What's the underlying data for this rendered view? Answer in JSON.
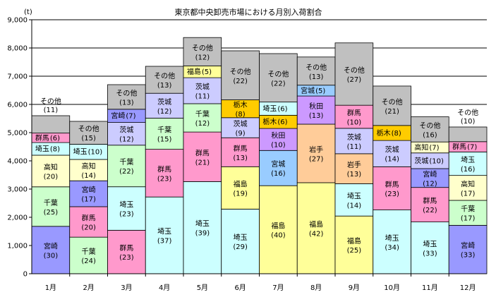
{
  "chart_data": {
    "type": "bar",
    "stacked": true,
    "title": "東京都中央卸売市場における月別入荷割合",
    "ylabel": "(t)",
    "xlabel": "",
    "ylim": [
      0,
      9000
    ],
    "yticks": [
      0,
      1000,
      2000,
      3000,
      4000,
      5000,
      6000,
      7000,
      8000,
      9000
    ],
    "ytick_labels": [
      "0",
      "1,000",
      "2,000",
      "3,000",
      "4,000",
      "5,000",
      "6,000",
      "7,000",
      "8,000",
      "9,000"
    ],
    "grid": "horizontal",
    "legend": "none",
    "categories": [
      "1月",
      "2月",
      "3月",
      "4月",
      "5月",
      "6月",
      "7月",
      "8月",
      "9月",
      "10月",
      "11月",
      "12月"
    ],
    "colors": {
      "宮崎": "#9999ff",
      "千葉": "#ccffcc",
      "高知": "#ffffcc",
      "埼玉": "#ccffff",
      "群馬": "#ff99cc",
      "福島": "#ffff99",
      "茨城": "#ccccff",
      "栃木": "#ffcc00",
      "秋田": "#cc99ff",
      "宮城": "#99ccff",
      "岩手": "#ffcc99",
      "その他": "#c0c0c0"
    },
    "bars": [
      {
        "month": "1月",
        "total": 5600,
        "segments": [
          {
            "name": "宮崎",
            "pct": "(30)",
            "value": 1680
          },
          {
            "name": "千葉",
            "pct": "(25)",
            "value": 1400
          },
          {
            "name": "高知",
            "pct": "(20)",
            "value": 1120
          },
          {
            "name": "埼玉",
            "pct": "(8)",
            "value": 448
          },
          {
            "name": "群馬",
            "pct": "(6)",
            "value": 336
          },
          {
            "name": "その他",
            "pct": "(11)",
            "value": 616,
            "outside": true
          }
        ]
      },
      {
        "month": "2月",
        "total": 5400,
        "segments": [
          {
            "name": "千葉",
            "pct": "(24)",
            "value": 1296
          },
          {
            "name": "群馬",
            "pct": "(20)",
            "value": 1080
          },
          {
            "name": "宮崎",
            "pct": "(17)",
            "value": 918
          },
          {
            "name": "高知",
            "pct": "(14)",
            "value": 756
          },
          {
            "name": "埼玉",
            "pct": "(10)",
            "value": 540
          },
          {
            "name": "その他",
            "pct": "(15)",
            "value": 810
          }
        ]
      },
      {
        "month": "3月",
        "total": 6700,
        "segments": [
          {
            "name": "群馬",
            "pct": "(23)",
            "value": 1541
          },
          {
            "name": "埼玉",
            "pct": "(23)",
            "value": 1541
          },
          {
            "name": "千葉",
            "pct": "(22)",
            "value": 1474
          },
          {
            "name": "茨城",
            "pct": "(12)",
            "value": 804
          },
          {
            "name": "宮崎",
            "pct": "(7)",
            "value": 469
          },
          {
            "name": "その他",
            "pct": "(13)",
            "value": 871
          }
        ]
      },
      {
        "month": "4月",
        "total": 7350,
        "segments": [
          {
            "name": "埼玉",
            "pct": "(37)",
            "value": 2720
          },
          {
            "name": "群馬",
            "pct": "(23)",
            "value": 1690
          },
          {
            "name": "千葉",
            "pct": "(15)",
            "value": 1103
          },
          {
            "name": "茨城",
            "pct": "(12)",
            "value": 882
          },
          {
            "name": "その他",
            "pct": "(13)",
            "value": 955
          }
        ]
      },
      {
        "month": "5月",
        "total": 8370,
        "segments": [
          {
            "name": "埼玉",
            "pct": "(39)",
            "value": 3264
          },
          {
            "name": "群馬",
            "pct": "(21)",
            "value": 1758
          },
          {
            "name": "千葉",
            "pct": "(12)",
            "value": 1004
          },
          {
            "name": "茨城",
            "pct": "(11)",
            "value": 921
          },
          {
            "name": "福島",
            "pct": "(5)",
            "value": 419
          },
          {
            "name": "その他",
            "pct": "(12)",
            "value": 1004
          }
        ]
      },
      {
        "month": "6月",
        "total": 7900,
        "segments": [
          {
            "name": "埼玉",
            "pct": "(29)",
            "value": 2291
          },
          {
            "name": "福島",
            "pct": "(19)",
            "value": 1501
          },
          {
            "name": "群馬",
            "pct": "(13)",
            "value": 1027
          },
          {
            "name": "茨城",
            "pct": "(9)",
            "value": 711
          },
          {
            "name": "栃木",
            "pct": "(8)",
            "value": 632
          },
          {
            "name": "その他",
            "pct": "(22)",
            "value": 1738
          }
        ]
      },
      {
        "month": "7月",
        "total": 7800,
        "segments": [
          {
            "name": "福島",
            "pct": "(40)",
            "value": 3120
          },
          {
            "name": "宮城",
            "pct": "(16)",
            "value": 1248
          },
          {
            "name": "秋田",
            "pct": "(10)",
            "value": 780
          },
          {
            "name": "栃木",
            "pct": "(6)",
            "value": 468
          },
          {
            "name": "埼玉",
            "pct": "(6)",
            "value": 468
          },
          {
            "name": "その他",
            "pct": "(22)",
            "value": 1716
          }
        ]
      },
      {
        "month": "8月",
        "total": 7680,
        "segments": [
          {
            "name": "福島",
            "pct": "(42)",
            "value": 3226
          },
          {
            "name": "岩手",
            "pct": "(27)",
            "value": 2074
          },
          {
            "name": "秋田",
            "pct": "(13)",
            "value": 998
          },
          {
            "name": "宮城",
            "pct": "(5)",
            "value": 384
          },
          {
            "name": "その他",
            "pct": "(13)",
            "value": 998
          }
        ]
      },
      {
        "month": "9月",
        "total": 8180,
        "segments": [
          {
            "name": "福島",
            "pct": "(25)",
            "value": 2045
          },
          {
            "name": "埼玉",
            "pct": "(14)",
            "value": 1145
          },
          {
            "name": "岩手",
            "pct": "(13)",
            "value": 1063
          },
          {
            "name": "茨城",
            "pct": "(11)",
            "value": 900
          },
          {
            "name": "群馬",
            "pct": "(10)",
            "value": 818
          },
          {
            "name": "その他",
            "pct": "(27)",
            "value": 2209
          }
        ]
      },
      {
        "month": "10月",
        "total": 6650,
        "segments": [
          {
            "name": "埼玉",
            "pct": "(34)",
            "value": 2261
          },
          {
            "name": "群馬",
            "pct": "(23)",
            "value": 1530
          },
          {
            "name": "茨城",
            "pct": "(14)",
            "value": 931
          },
          {
            "name": "栃木",
            "pct": "(8)",
            "value": 532
          },
          {
            "name": "その他",
            "pct": "(21)",
            "value": 1397
          }
        ]
      },
      {
        "month": "11月",
        "total": 5560,
        "segments": [
          {
            "name": "埼玉",
            "pct": "(33)",
            "value": 1835
          },
          {
            "name": "群馬",
            "pct": "(22)",
            "value": 1223
          },
          {
            "name": "宮崎",
            "pct": "(12)",
            "value": 667
          },
          {
            "name": "茨城",
            "pct": "(10)",
            "value": 556
          },
          {
            "name": "高知",
            "pct": "(7)",
            "value": 389
          },
          {
            "name": "その他",
            "pct": "(16)",
            "value": 890
          }
        ]
      },
      {
        "month": "12月",
        "total": 5200,
        "segments": [
          {
            "name": "宮崎",
            "pct": "(33)",
            "value": 1716
          },
          {
            "name": "千葉",
            "pct": "(17)",
            "value": 884
          },
          {
            "name": "高知",
            "pct": "(17)",
            "value": 884
          },
          {
            "name": "埼玉",
            "pct": "(16)",
            "value": 832
          },
          {
            "name": "群馬",
            "pct": "(7)",
            "value": 364
          },
          {
            "name": "その他",
            "pct": "(10)",
            "value": 520,
            "outside": true
          }
        ]
      }
    ]
  }
}
